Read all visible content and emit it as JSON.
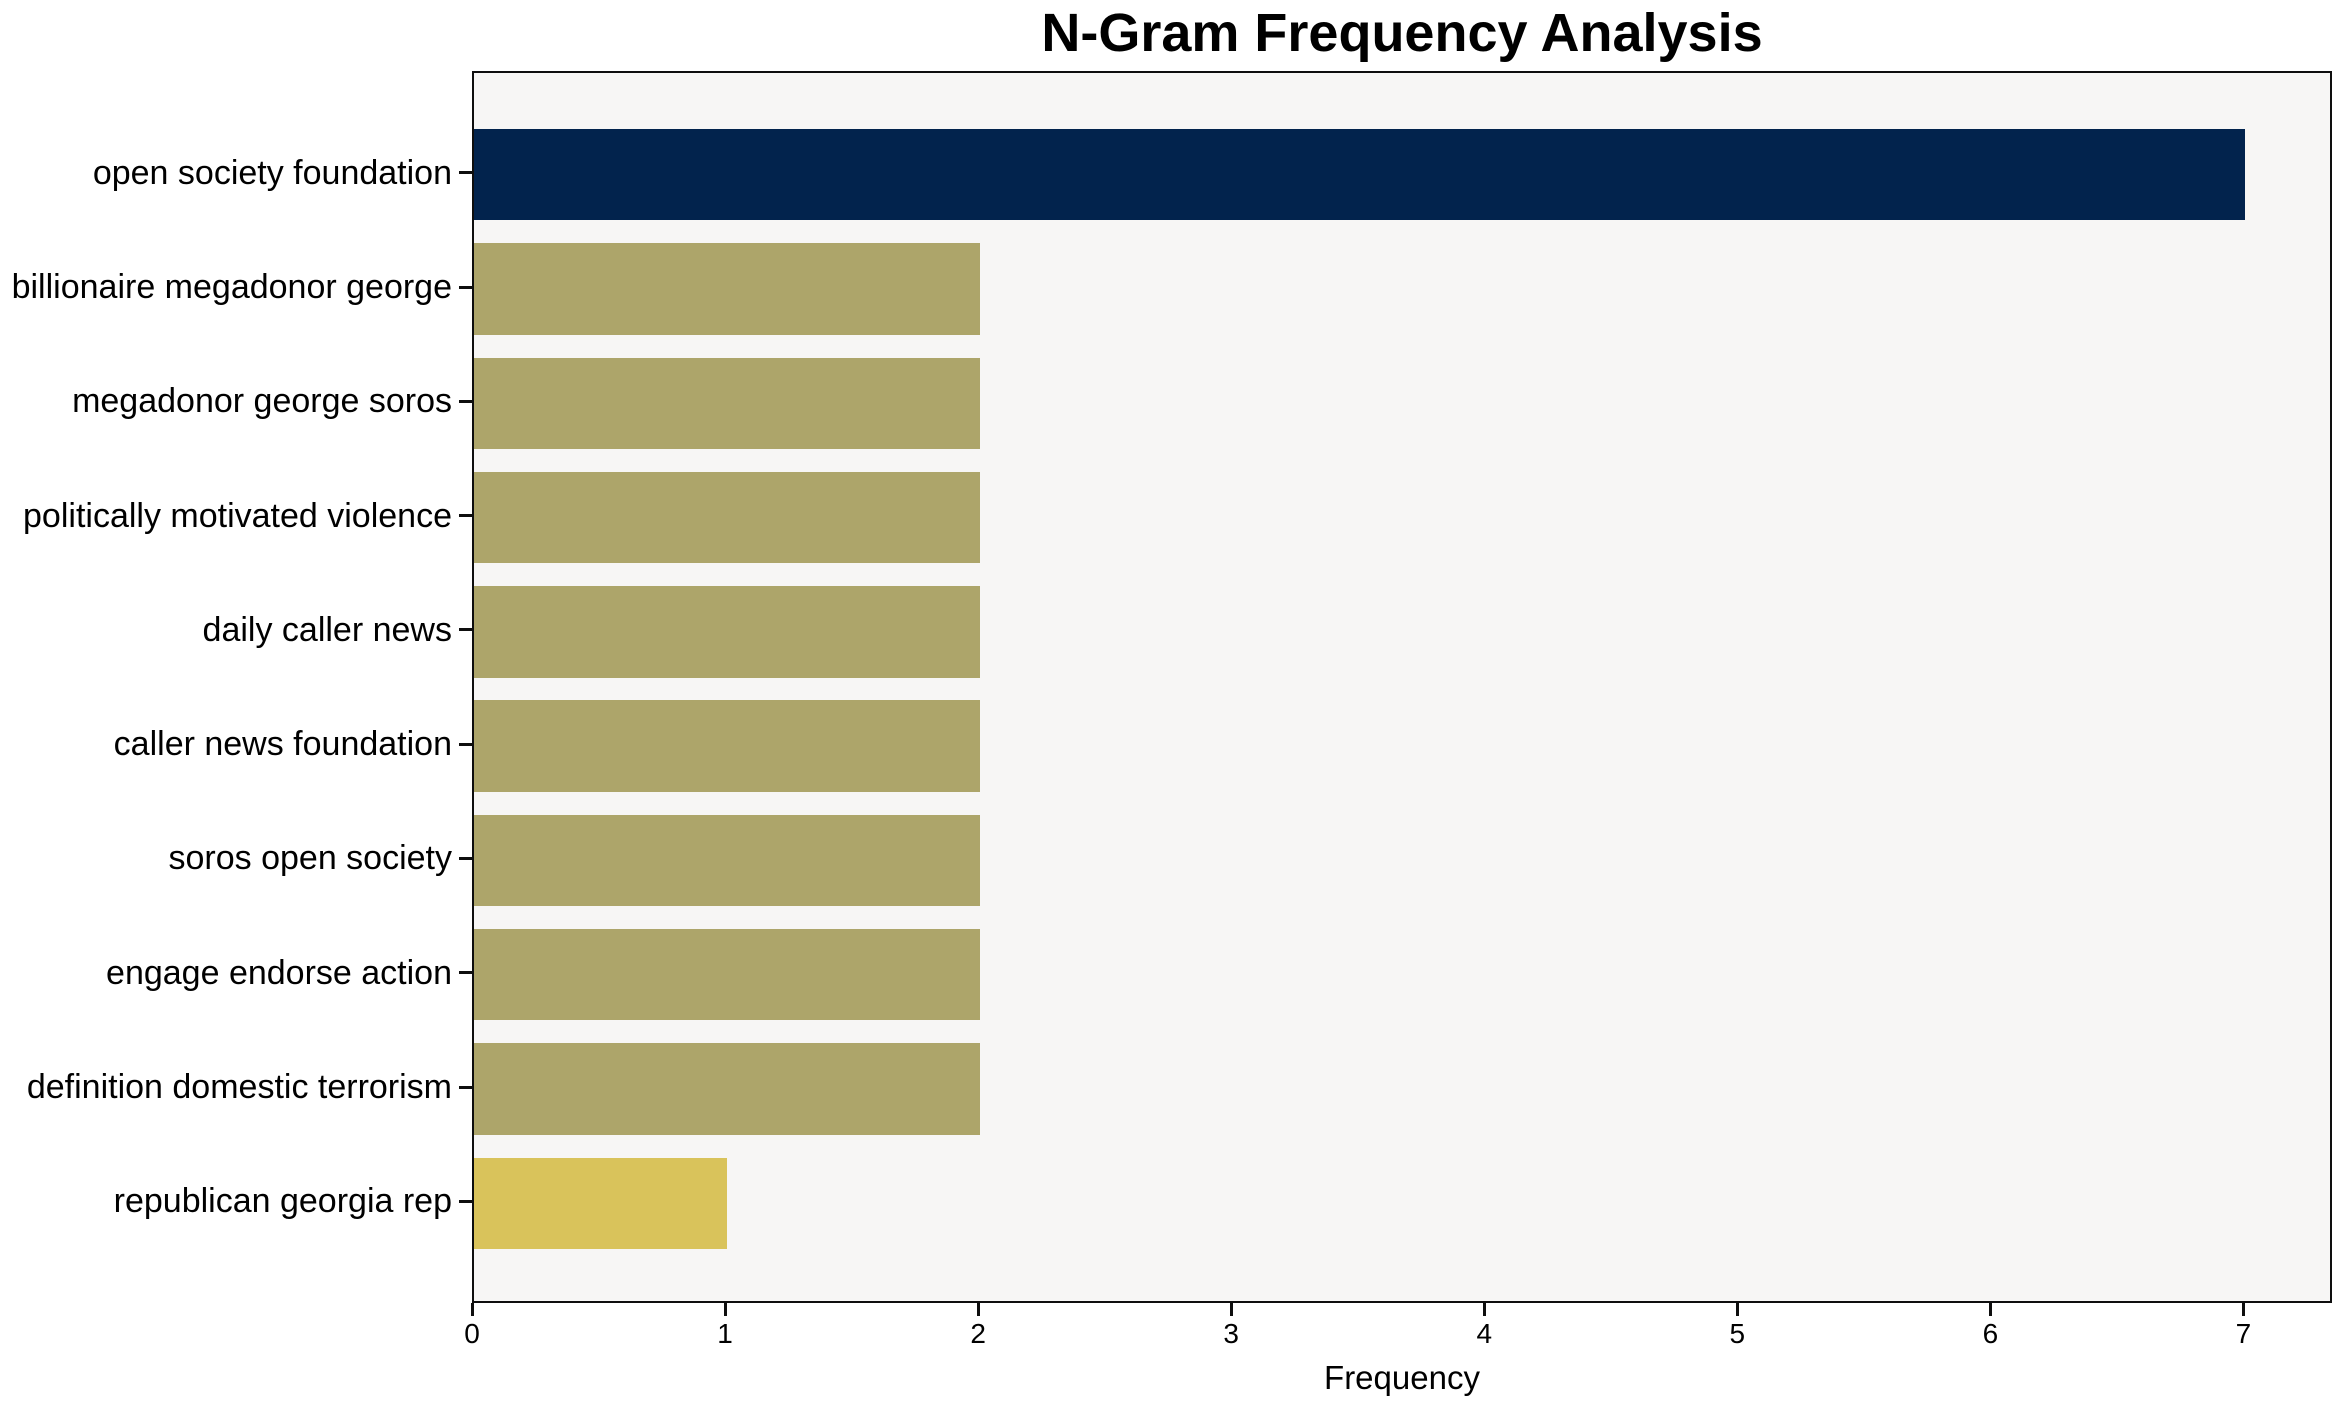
{
  "chart_data": {
    "type": "bar",
    "orientation": "horizontal",
    "title": "N-Gram Frequency Analysis",
    "xlabel": "Frequency",
    "ylabel": "",
    "categories": [
      "open society foundation",
      "billionaire megadonor george",
      "megadonor george soros",
      "politically motivated violence",
      "daily caller news",
      "caller news foundation",
      "soros open society",
      "engage endorse action",
      "definition domestic terrorism",
      "republican georgia rep"
    ],
    "values": [
      7,
      2,
      2,
      2,
      2,
      2,
      2,
      2,
      2,
      1
    ],
    "bar_colors": [
      "#02234d",
      "#ada56a",
      "#ada56a",
      "#ada56a",
      "#ada56a",
      "#ada56a",
      "#ada56a",
      "#ada56a",
      "#ada56a",
      "#d9c35b"
    ],
    "xticks": [
      0,
      1,
      2,
      3,
      4,
      5,
      6,
      7
    ],
    "xlim": [
      0,
      7.35
    ],
    "grid": false,
    "legend": false,
    "plot_background": "#f7f6f5",
    "frame_color": "#0e0e0e",
    "text_color": "#000000"
  }
}
